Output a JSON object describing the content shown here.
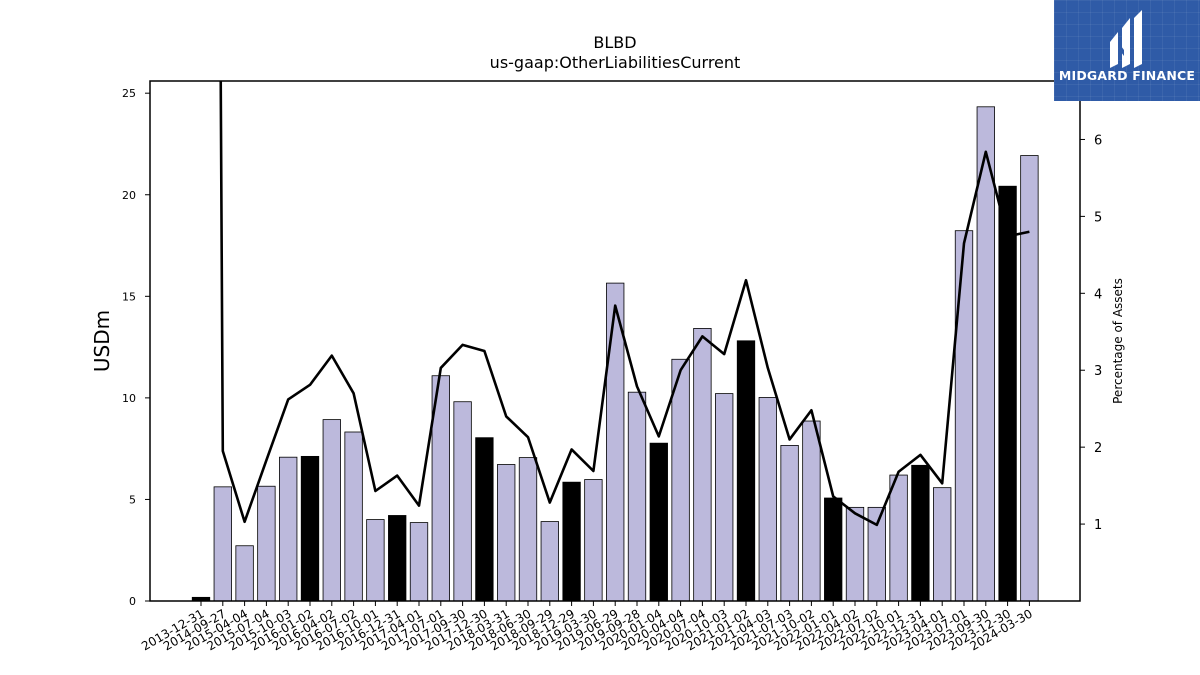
{
  "chart_data": {
    "type": "bar",
    "title": "BLBD",
    "subtitle": "us-gaap:OtherLiabilitiesCurrent",
    "ylabel": "USDm",
    "y2label": "Percentage of Assets",
    "ylim": [
      0,
      25.6
    ],
    "y2lim": [
      0,
      6.76
    ],
    "yticks": [
      0,
      5,
      10,
      15,
      20,
      25
    ],
    "y2ticks": [
      1,
      2,
      3,
      4,
      5,
      6
    ],
    "grid": false,
    "colors": {
      "bar": "#bcb9dc",
      "bar_highlight": "#000000",
      "line": "#000000"
    },
    "categories": [
      "2013-12-31",
      "2014-09-27",
      "2015-04-04",
      "2015-07-04",
      "2015-10-03",
      "2016-01-02",
      "2016-04-02",
      "2016-07-02",
      "2016-10-01",
      "2016-12-31",
      "2017-04-01",
      "2017-07-01",
      "2017-09-30",
      "2017-12-30",
      "2018-03-31",
      "2018-06-30",
      "2018-09-29",
      "2018-12-29",
      "2019-03-30",
      "2019-06-29",
      "2019-09-28",
      "2020-01-04",
      "2020-04-04",
      "2020-07-04",
      "2020-10-03",
      "2021-01-02",
      "2021-04-03",
      "2021-07-03",
      "2021-10-02",
      "2022-01-01",
      "2022-04-02",
      "2022-07-02",
      "2022-10-01",
      "2022-12-31",
      "2023-04-01",
      "2023-07-01",
      "2023-09-30",
      "2023-12-30",
      "2024-03-30"
    ],
    "series": [
      {
        "values": [
          0.18,
          5.62,
          2.72,
          5.65,
          7.08,
          7.12,
          8.93,
          8.32,
          4.01,
          4.21,
          3.86,
          11.09,
          9.81,
          8.04,
          6.72,
          7.06,
          3.91,
          5.85,
          5.98,
          15.65,
          10.28,
          7.77,
          11.9,
          13.42,
          10.21,
          12.81,
          10.02,
          7.66,
          8.86,
          5.07,
          4.61,
          4.61,
          6.2,
          6.68,
          5.58,
          18.23,
          24.33,
          20.42,
          21.93
        ],
        "highlight": [
          true,
          false,
          false,
          false,
          false,
          true,
          false,
          false,
          false,
          true,
          false,
          false,
          false,
          true,
          false,
          false,
          false,
          true,
          false,
          false,
          false,
          true,
          false,
          false,
          false,
          true,
          false,
          false,
          false,
          true,
          false,
          false,
          false,
          true,
          false,
          false,
          false,
          true,
          false
        ]
      },
      {
        "type": "line",
        "axis": "right",
        "values": [
          null,
          1.95,
          1.03,
          1.83,
          2.62,
          2.81,
          3.19,
          2.7,
          1.43,
          1.63,
          1.24,
          3.03,
          3.33,
          3.25,
          2.4,
          2.13,
          1.28,
          1.97,
          1.69,
          3.84,
          2.79,
          2.14,
          3.0,
          3.44,
          3.21,
          4.17,
          3.03,
          2.1,
          2.48,
          1.36,
          1.14,
          0.99,
          1.68,
          1.9,
          1.53,
          4.65,
          5.84,
          4.74,
          4.8
        ]
      }
    ]
  },
  "logo": {
    "brand": "MIDGARD FINANCE"
  }
}
